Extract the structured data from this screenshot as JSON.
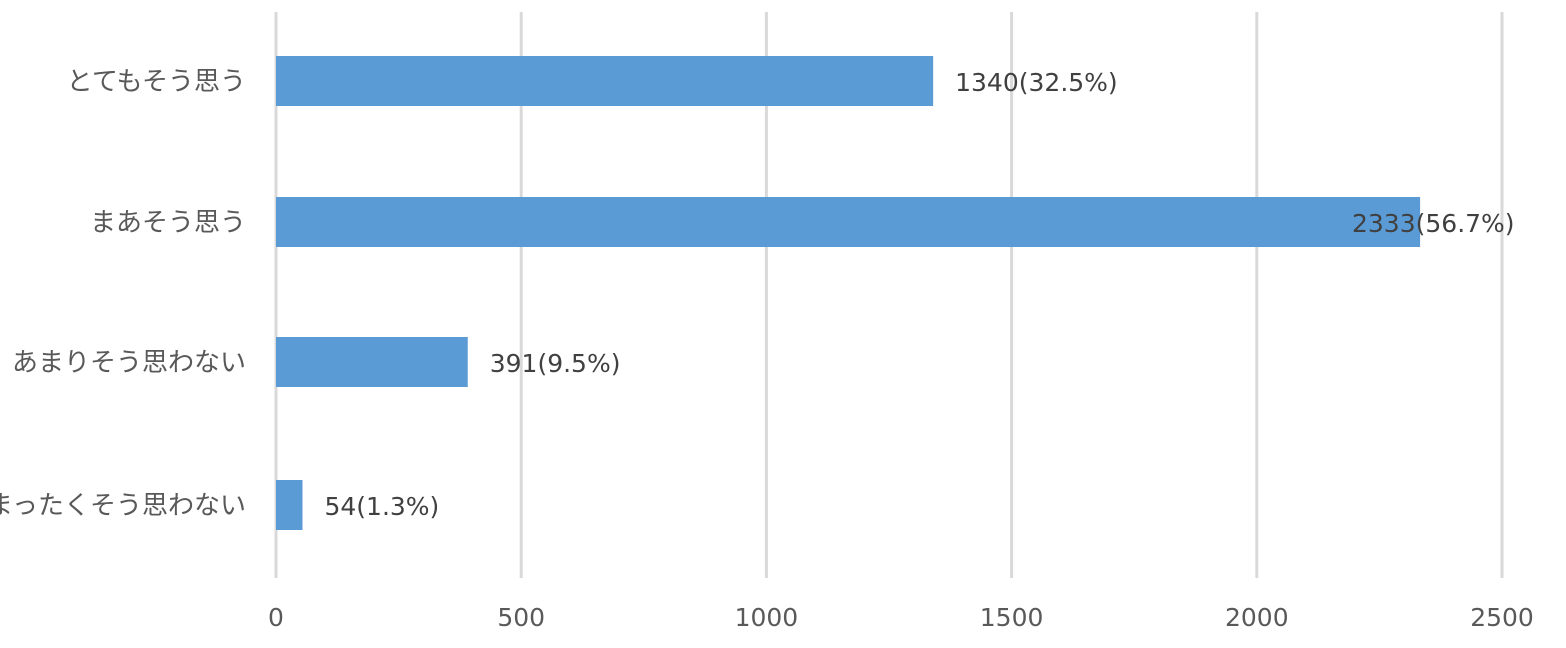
{
  "chart_data": {
    "type": "bar",
    "orientation": "horizontal",
    "categories": [
      "とてもそう思う",
      "まあそう思う",
      "あまりそう思わない",
      "まったくそう思わない"
    ],
    "values": [
      1340,
      2333,
      391,
      54
    ],
    "data_labels": [
      "1340(32.5%)",
      "2333(56.7%)",
      "391(9.5%)",
      "54(1.3%)"
    ],
    "xticks": [
      "0",
      "500",
      "1000",
      "1500",
      "2000",
      "2500"
    ],
    "xlim": [
      0,
      2500
    ],
    "grid": true,
    "legend": "none",
    "colors": {
      "bar": "#5b9bd5",
      "grid": "#d9d9d9",
      "text": "#595959"
    }
  }
}
